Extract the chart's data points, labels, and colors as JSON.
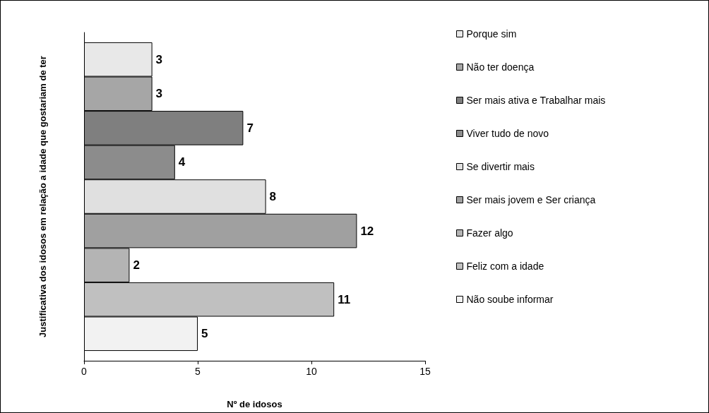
{
  "chart_data": {
    "type": "bar",
    "orientation": "horizontal",
    "xlabel": "Nº de idosos",
    "ylabel": "Justificativa dos idosos em relação a idade que gostariam de ter",
    "categories": [
      null
    ],
    "series": [
      {
        "name": "Porque sim",
        "color": "#e8e8e8",
        "values": [
          3
        ]
      },
      {
        "name": "Não ter doença",
        "color": "#a6a6a6",
        "values": [
          3
        ]
      },
      {
        "name": "Ser mais ativa e Trabalhar mais",
        "color": "#7f7f7f",
        "values": [
          7
        ]
      },
      {
        "name": "Viver tudo de novo",
        "color": "#8c8c8c",
        "values": [
          4
        ]
      },
      {
        "name": "Se divertir mais",
        "color": "#e0e0e0",
        "values": [
          8
        ]
      },
      {
        "name": "Ser mais jovem e Ser criança",
        "color": "#a0a0a0",
        "values": [
          12
        ]
      },
      {
        "name": "Fazer algo",
        "color": "#b4b4b4",
        "values": [
          2
        ]
      },
      {
        "name": "Feliz com a idade",
        "color": "#c0c0c0",
        "values": [
          11
        ]
      },
      {
        "name": "Não soube informar",
        "color": "#f2f2f2",
        "values": [
          5
        ]
      }
    ],
    "xlim": [
      0,
      15
    ],
    "xticks": [
      0,
      5,
      10,
      15
    ],
    "data_labels": true,
    "legend": "right",
    "grid": false
  }
}
